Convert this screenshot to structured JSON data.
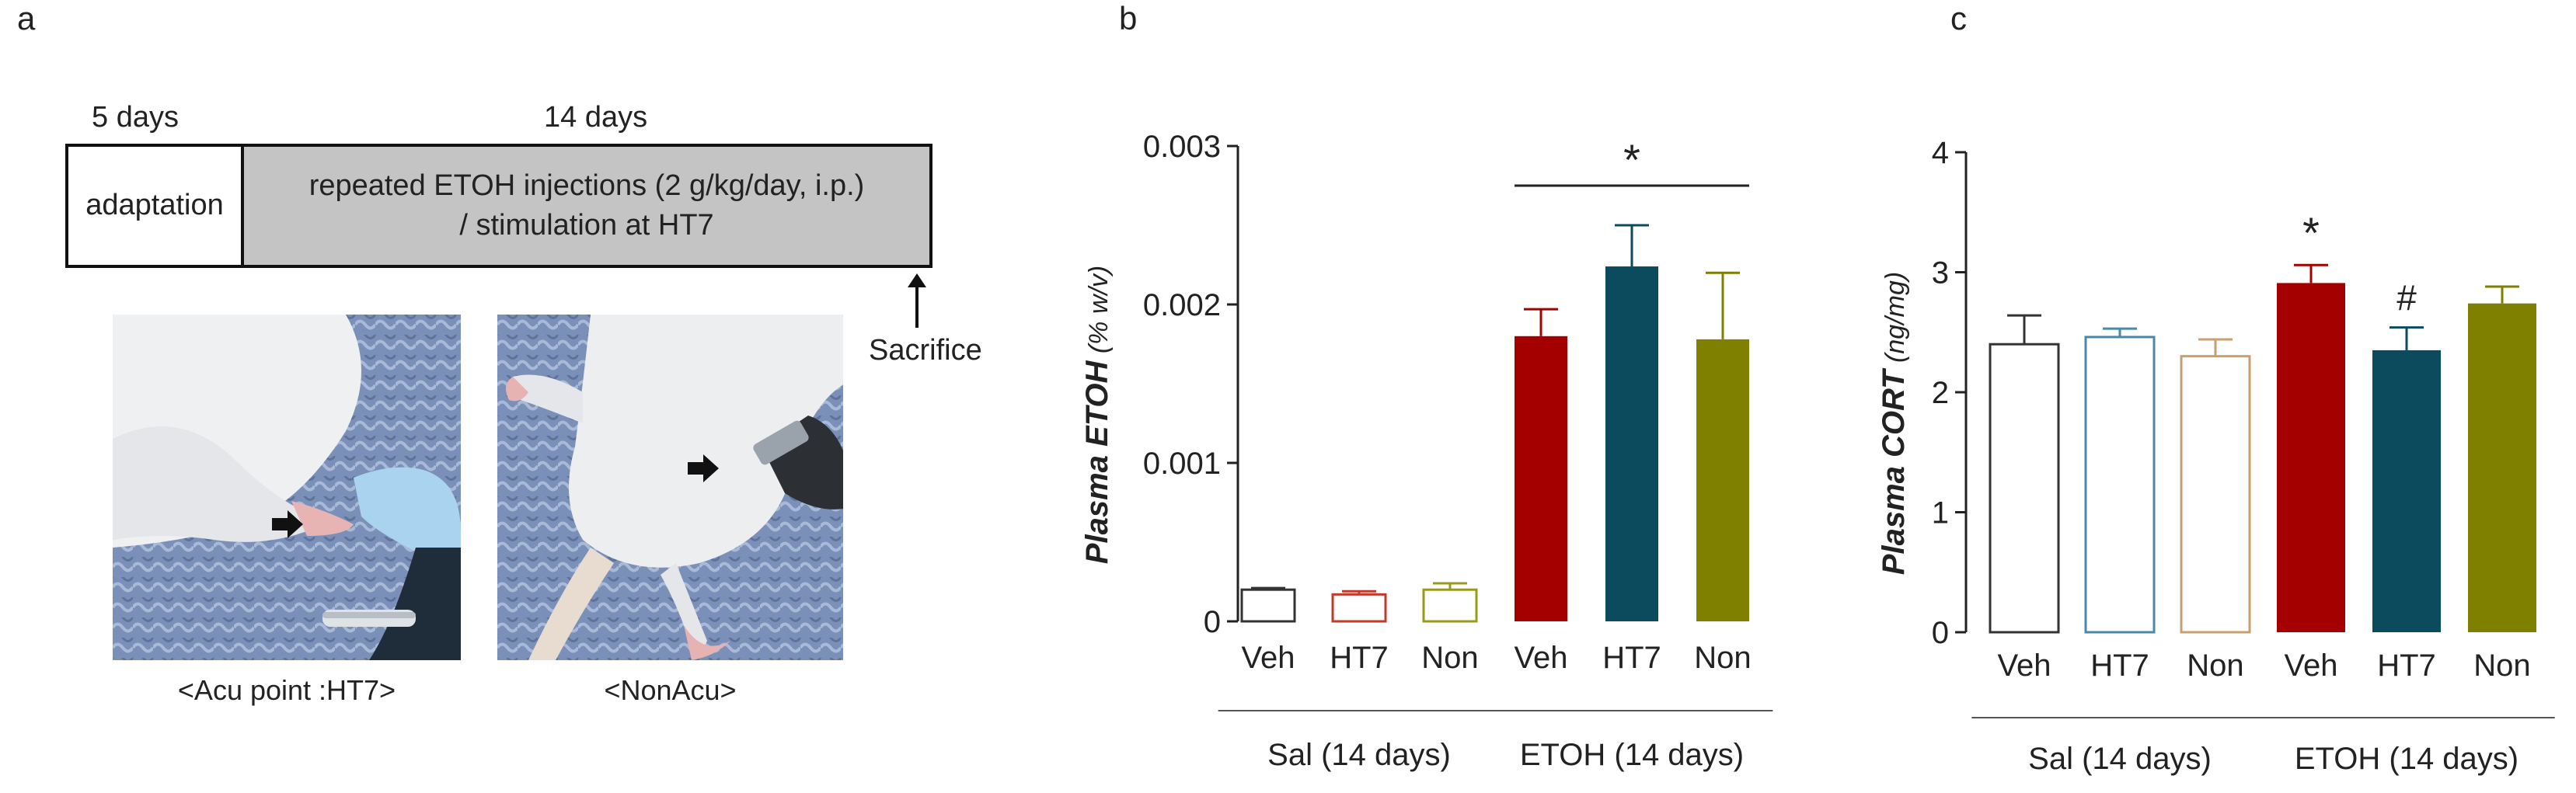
{
  "panels": {
    "a": "a",
    "b": "b",
    "c": "c"
  },
  "timeline": {
    "phase1_duration": "5 days",
    "phase2_duration": "14 days",
    "phase1_label": "adaptation",
    "phase2_label_line1": "repeated ETOH injections (2 g/kg/day, i.p.)",
    "phase2_label_line2": "/ stimulation at HT7",
    "endpoint": "Sacrifice",
    "arrow_icon": "arrow-up-icon"
  },
  "photos": {
    "left_caption": "<Acu point :HT7>",
    "right_caption": "<NonAcu>",
    "pointer_icon": "arrow-right-icon"
  },
  "colors": {
    "veh_etoh": "#a50000",
    "ht7_etoh": "#0c4a5e",
    "non_etoh": "#7f7f00",
    "veh_sal_edge": "#333333",
    "ht7_sal_edge": "#c0392b",
    "non_sal_edge": "#9a9a1a",
    "ht7_sal_edge_c": "#4a8aa8",
    "non_sal_edge_c": "#c8a070",
    "axis": "#222222"
  },
  "chart_data": [
    {
      "id": "b",
      "type": "bar",
      "ylabel_pre": "Plasma ",
      "ylabel_main": "ETOH",
      "ylabel_unit": "  (% w/v)",
      "ylim": [
        0,
        0.003
      ],
      "yticks": [
        "0",
        "0.001",
        "0.002",
        "0.003"
      ],
      "ytick_values": [
        0,
        0.001,
        0.002,
        0.003
      ],
      "categories": [
        "Veh",
        "HT7",
        "Non",
        "Veh",
        "HT7",
        "Non"
      ],
      "values": [
        0.0002,
        0.00017,
        0.0002,
        0.0018,
        0.00224,
        0.00178
      ],
      "errors": [
        1e-05,
        2e-05,
        4e-05,
        0.00017,
        0.00026,
        0.00042
      ],
      "filled": [
        false,
        false,
        false,
        true,
        true,
        true
      ],
      "groups": [
        "Sal (14 days)",
        "ETOH (14 days)"
      ],
      "annotations": [
        {
          "text": "*",
          "over_bars": [
            3,
            5
          ],
          "y": 0.00275,
          "line": true
        }
      ]
    },
    {
      "id": "c",
      "type": "bar",
      "ylabel_pre": "Plasma ",
      "ylabel_main": "CORT",
      "ylabel_unit": "  (ng/mg)",
      "ylim": [
        0,
        4
      ],
      "yticks": [
        "0",
        "1",
        "2",
        "3",
        "4"
      ],
      "ytick_values": [
        0,
        1,
        2,
        3,
        4
      ],
      "categories": [
        "Veh",
        "HT7",
        "Non",
        "Veh",
        "HT7",
        "Non"
      ],
      "values": [
        2.4,
        2.46,
        2.3,
        2.91,
        2.35,
        2.74
      ],
      "errors": [
        0.24,
        0.07,
        0.14,
        0.15,
        0.19,
        0.14
      ],
      "filled": [
        false,
        false,
        false,
        true,
        true,
        true
      ],
      "groups": [
        "Sal (14 days)",
        "ETOH (14 days)"
      ],
      "annotations": [
        {
          "text": "*",
          "over_bar": 3
        },
        {
          "text": "#",
          "over_bar": 4
        }
      ]
    }
  ]
}
